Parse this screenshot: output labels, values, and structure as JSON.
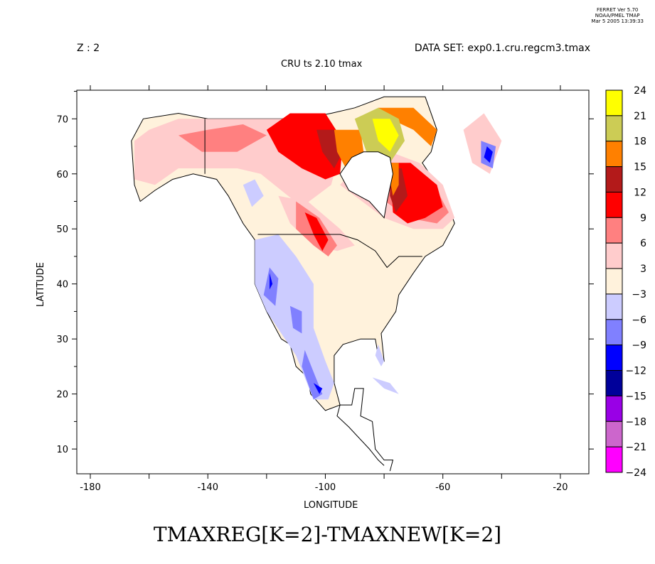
{
  "stamp": {
    "line1": "FERRET Ver  5.70",
    "line2": "NOAA/PMEL TMAP",
    "line3": "Mar  5 2005 13:39:33"
  },
  "header": {
    "z_label": "Z : 2",
    "dataset": "DATA SET: exp0.1.cru.regcm3.tmax",
    "subtitle": "CRU ts 2.10 tmax"
  },
  "chart_data": {
    "type": "heatmap",
    "title": "TMAXREG[K=2]-TMAXNEW[K=2]",
    "xlabel": "LONGITUDE",
    "ylabel": "LATITUDE",
    "xlim": [
      -184.6,
      -10.3
    ],
    "ylim": [
      5.5,
      75.2
    ],
    "x_ticks": [
      -180,
      -140,
      -100,
      -60,
      -20
    ],
    "x_minor_ticks": [
      -160,
      -120,
      -80,
      -40
    ],
    "x_tick_labels": [
      "-180",
      "-140",
      "-100",
      "-60",
      "-20"
    ],
    "y_ticks": [
      10,
      20,
      30,
      40,
      50,
      60,
      70
    ],
    "y_tick_labels": [
      "10",
      "20",
      "30",
      "40",
      "50",
      "60",
      "70"
    ],
    "colorbar": {
      "labels": [
        "24",
        "21",
        "18",
        "15",
        "12",
        "9",
        "6",
        "3",
        "-3",
        "-6",
        "-9",
        "-12",
        "-15",
        "-18",
        "-21",
        "-24"
      ],
      "colors": [
        "#ffff00",
        "#cccc55",
        "#ff8000",
        "#b31a1a",
        "#ff0000",
        "#ff8080",
        "#ffcccc",
        "#fff2dc",
        "#ccccff",
        "#8080ff",
        "#0000ff",
        "#00009a",
        "#9900e6",
        "#cc66cc",
        "#ff00ff"
      ]
    },
    "regions": [
      {
        "level": 7,
        "poly": [
          [
            -165,
            58
          ],
          [
            -166,
            66
          ],
          [
            -162,
            70
          ],
          [
            -150,
            71
          ],
          [
            -140,
            70
          ],
          [
            -128,
            70
          ],
          [
            -118,
            70
          ],
          [
            -108,
            70
          ],
          [
            -98,
            71
          ],
          [
            -90,
            72
          ],
          [
            -80,
            74
          ],
          [
            -66,
            74
          ],
          [
            -62,
            68
          ],
          [
            -64,
            64
          ],
          [
            -67,
            62
          ],
          [
            -62,
            58
          ],
          [
            -58,
            54
          ],
          [
            -56,
            51
          ],
          [
            -60,
            47
          ],
          [
            -66,
            45
          ],
          [
            -70,
            42
          ],
          [
            -75,
            38
          ],
          [
            -76,
            35
          ],
          [
            -81,
            31
          ],
          [
            -80,
            26
          ],
          [
            -82,
            27
          ],
          [
            -83,
            30
          ],
          [
            -88,
            30
          ],
          [
            -94,
            29
          ],
          [
            -97,
            27
          ],
          [
            -97,
            22
          ],
          [
            -95,
            18
          ],
          [
            -100,
            17
          ],
          [
            -105,
            20
          ],
          [
            -106,
            23
          ],
          [
            -110,
            25
          ],
          [
            -112,
            29
          ],
          [
            -115,
            30
          ],
          [
            -117,
            32
          ],
          [
            -120,
            35
          ],
          [
            -124,
            40
          ],
          [
            -124,
            48
          ],
          [
            -128,
            51
          ],
          [
            -133,
            56
          ],
          [
            -137,
            59
          ],
          [
            -145,
            60
          ],
          [
            -152,
            59
          ],
          [
            -158,
            57
          ],
          [
            -163,
            55
          ]
        ]
      },
      {
        "level": 6,
        "poly": [
          [
            -165,
            59
          ],
          [
            -165,
            66
          ],
          [
            -160,
            68
          ],
          [
            -150,
            70
          ],
          [
            -140,
            70
          ],
          [
            -125,
            70
          ],
          [
            -110,
            70
          ],
          [
            -100,
            70
          ],
          [
            -95,
            64
          ],
          [
            -98,
            58
          ],
          [
            -103,
            56
          ],
          [
            -108,
            54
          ],
          [
            -115,
            57
          ],
          [
            -122,
            60
          ],
          [
            -130,
            61
          ],
          [
            -140,
            61
          ],
          [
            -150,
            61
          ],
          [
            -158,
            58
          ]
        ]
      },
      {
        "level": 6,
        "poly": [
          [
            -116,
            56
          ],
          [
            -106,
            55
          ],
          [
            -95,
            50
          ],
          [
            -90,
            47
          ],
          [
            -96,
            46
          ],
          [
            -104,
            47
          ],
          [
            -112,
            51
          ]
        ]
      },
      {
        "level": 6,
        "poly": [
          [
            -95,
            58
          ],
          [
            -80,
            52
          ],
          [
            -70,
            50
          ],
          [
            -60,
            50
          ],
          [
            -56,
            52
          ],
          [
            -60,
            58
          ],
          [
            -68,
            62
          ],
          [
            -78,
            64
          ],
          [
            -88,
            62
          ]
        ]
      },
      {
        "level": 5,
        "poly": [
          [
            -110,
            55
          ],
          [
            -102,
            52
          ],
          [
            -96,
            47
          ],
          [
            -99,
            45
          ],
          [
            -104,
            47
          ],
          [
            -110,
            50
          ]
        ]
      },
      {
        "level": 5,
        "poly": [
          [
            -82,
            56
          ],
          [
            -72,
            52
          ],
          [
            -62,
            51
          ],
          [
            -58,
            53
          ],
          [
            -62,
            57
          ],
          [
            -70,
            60
          ],
          [
            -78,
            60
          ]
        ]
      },
      {
        "level": 5,
        "poly": [
          [
            -150,
            67
          ],
          [
            -140,
            68
          ],
          [
            -128,
            69
          ],
          [
            -120,
            67
          ],
          [
            -130,
            64
          ],
          [
            -142,
            64
          ]
        ]
      },
      {
        "level": 4,
        "poly": [
          [
            -120,
            68
          ],
          [
            -112,
            71
          ],
          [
            -100,
            71
          ],
          [
            -94,
            66
          ],
          [
            -95,
            60
          ],
          [
            -100,
            59
          ],
          [
            -108,
            61
          ],
          [
            -116,
            64
          ]
        ]
      },
      {
        "level": 4,
        "poly": [
          [
            -107,
            53
          ],
          [
            -103,
            52
          ],
          [
            -99,
            48
          ],
          [
            -101,
            46
          ],
          [
            -104,
            49
          ]
        ]
      },
      {
        "level": 4,
        "poly": [
          [
            -78,
            62
          ],
          [
            -71,
            62
          ],
          [
            -62,
            58
          ],
          [
            -60,
            54
          ],
          [
            -66,
            52
          ],
          [
            -72,
            51
          ],
          [
            -77,
            53
          ]
        ]
      },
      {
        "level": 3,
        "poly": [
          [
            -103,
            68
          ],
          [
            -97,
            68
          ],
          [
            -94,
            64
          ],
          [
            -97,
            61
          ],
          [
            -101,
            64
          ]
        ]
      },
      {
        "level": 3,
        "poly": [
          [
            -78,
            61
          ],
          [
            -74,
            61
          ],
          [
            -72,
            56
          ],
          [
            -76,
            53
          ],
          [
            -78,
            56
          ]
        ]
      },
      {
        "level": 2,
        "poly": [
          [
            -97,
            68
          ],
          [
            -88,
            68
          ],
          [
            -87,
            64
          ],
          [
            -93,
            61
          ],
          [
            -96,
            64
          ]
        ]
      },
      {
        "level": 2,
        "poly": [
          [
            -79,
            62
          ],
          [
            -75,
            62
          ],
          [
            -75,
            58
          ],
          [
            -77,
            56
          ],
          [
            -78,
            59
          ]
        ]
      },
      {
        "level": 2,
        "poly": [
          [
            -82,
            72
          ],
          [
            -70,
            72
          ],
          [
            -62,
            68
          ],
          [
            -64,
            65
          ],
          [
            -70,
            68
          ],
          [
            -78,
            70
          ]
        ]
      },
      {
        "level": 1,
        "poly": [
          [
            -90,
            70
          ],
          [
            -82,
            72
          ],
          [
            -75,
            70
          ],
          [
            -73,
            66
          ],
          [
            -78,
            62
          ],
          [
            -86,
            64
          ]
        ]
      },
      {
        "level": 0,
        "poly": [
          [
            -84,
            70
          ],
          [
            -78,
            70
          ],
          [
            -75,
            67
          ],
          [
            -78,
            64
          ],
          [
            -82,
            66
          ]
        ]
      },
      {
        "level": 8,
        "poly": [
          [
            -124,
            48
          ],
          [
            -116,
            49
          ],
          [
            -110,
            45
          ],
          [
            -104,
            40
          ],
          [
            -104,
            32
          ],
          [
            -100,
            26
          ],
          [
            -97,
            22
          ],
          [
            -99,
            19
          ],
          [
            -104,
            19
          ],
          [
            -110,
            27
          ],
          [
            -115,
            31
          ],
          [
            -120,
            35
          ],
          [
            -124,
            40
          ]
        ]
      },
      {
        "level": 8,
        "poly": [
          [
            -128,
            58
          ],
          [
            -124,
            59
          ],
          [
            -121,
            56
          ],
          [
            -125,
            54
          ]
        ]
      },
      {
        "level": 8,
        "poly": [
          [
            -82,
            29
          ],
          [
            -80,
            26
          ],
          [
            -81,
            25
          ],
          [
            -83,
            27
          ]
        ]
      },
      {
        "level": 8,
        "poly": [
          [
            -84,
            23
          ],
          [
            -78,
            22
          ],
          [
            -75,
            20
          ],
          [
            -80,
            21
          ]
        ]
      },
      {
        "level": 9,
        "poly": [
          [
            -119,
            43
          ],
          [
            -116,
            41
          ],
          [
            -117,
            36
          ],
          [
            -121,
            38
          ]
        ]
      },
      {
        "level": 9,
        "poly": [
          [
            -107,
            28
          ],
          [
            -104,
            24
          ],
          [
            -101,
            20
          ],
          [
            -104,
            19
          ],
          [
            -108,
            25
          ]
        ]
      },
      {
        "level": 9,
        "poly": [
          [
            -112,
            36
          ],
          [
            -108,
            35
          ],
          [
            -108,
            31
          ],
          [
            -111,
            32
          ]
        ]
      },
      {
        "level": 10,
        "poly": [
          [
            -104,
            22
          ],
          [
            -101,
            21
          ],
          [
            -102,
            20
          ]
        ]
      },
      {
        "level": 10,
        "poly": [
          [
            -119,
            42
          ],
          [
            -118,
            40
          ],
          [
            -119,
            39
          ]
        ]
      },
      {
        "level": 6,
        "poly": [
          [
            -53,
            68
          ],
          [
            -46,
            71
          ],
          [
            -40,
            66
          ],
          [
            -44,
            60
          ],
          [
            -50,
            62
          ]
        ]
      },
      {
        "level": 9,
        "poly": [
          [
            -47,
            66
          ],
          [
            -42,
            65
          ],
          [
            -43,
            61
          ],
          [
            -47,
            62
          ]
        ]
      },
      {
        "level": 10,
        "poly": [
          [
            -45,
            65
          ],
          [
            -43,
            64
          ],
          [
            -44,
            62
          ],
          [
            -46,
            63
          ]
        ]
      },
      {
        "level": -1,
        "poly": [
          [
            -95,
            60
          ],
          [
            -92,
            57
          ],
          [
            -85,
            55
          ],
          [
            -80,
            52
          ],
          [
            -79,
            55
          ],
          [
            -77,
            60
          ],
          [
            -78,
            63
          ],
          [
            -82,
            64
          ],
          [
            -87,
            64
          ],
          [
            -91,
            63
          ]
        ]
      }
    ],
    "grid": false
  }
}
